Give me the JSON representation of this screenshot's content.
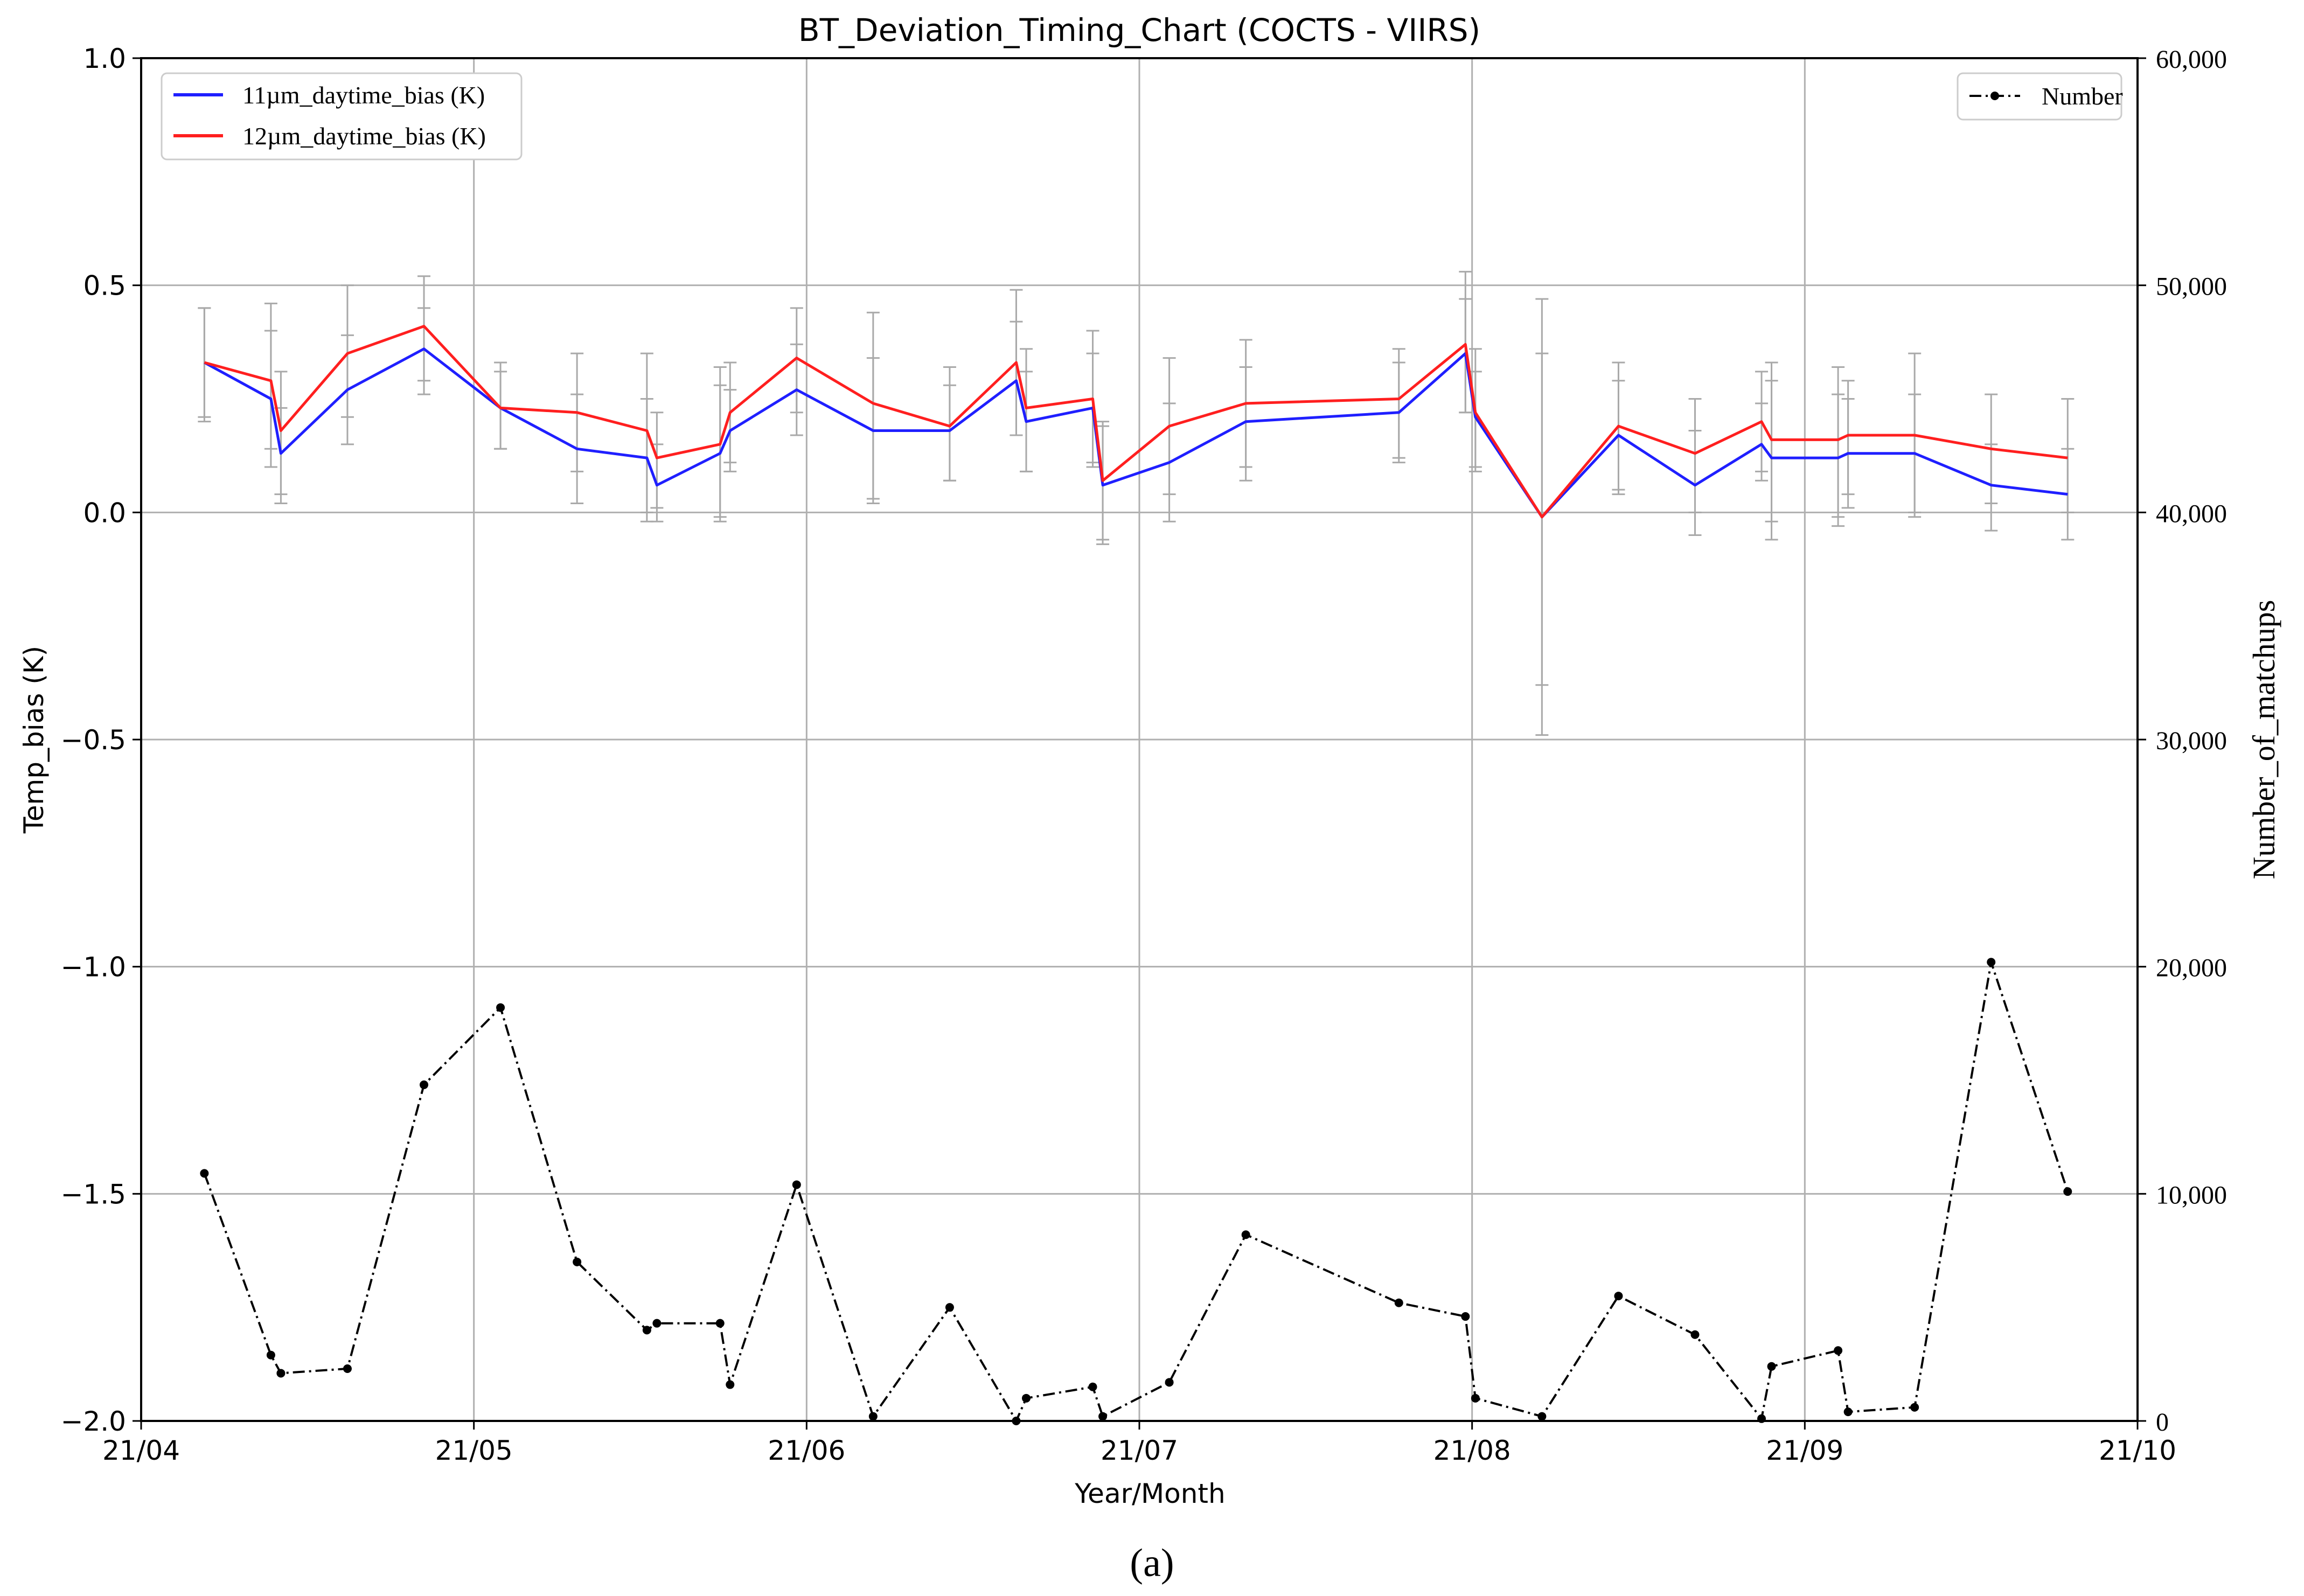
{
  "chart_data": {
    "type": "line",
    "title": "BT_Deviation_Timing_Chart (COCTS - VIIRS)",
    "xlabel": "Year/Month",
    "ylabel": "Temp_bias (K)",
    "y2label": "Number_of_matchups",
    "xlim": [
      0,
      6
    ],
    "ylim": [
      -2.0,
      1.0
    ],
    "y2lim": [
      0,
      60000
    ],
    "grid": true,
    "x_ticks": [
      {
        "pos": 0,
        "label": "21/04"
      },
      {
        "pos": 1,
        "label": "21/05"
      },
      {
        "pos": 2,
        "label": "21/06"
      },
      {
        "pos": 3,
        "label": "21/07"
      },
      {
        "pos": 4,
        "label": "21/08"
      },
      {
        "pos": 5,
        "label": "21/09"
      },
      {
        "pos": 6,
        "label": "21/10"
      }
    ],
    "y_ticks": [
      {
        "value": 1.0,
        "label": "1.0"
      },
      {
        "value": 0.5,
        "label": "0.5"
      },
      {
        "value": 0.0,
        "label": "0.0"
      },
      {
        "value": -0.5,
        "label": "−0.5"
      },
      {
        "value": -1.0,
        "label": "−1.0"
      },
      {
        "value": -1.5,
        "label": "−1.5"
      },
      {
        "value": -2.0,
        "label": "−2.0"
      }
    ],
    "y2_ticks": [
      {
        "value": 60000,
        "label": "60,000"
      },
      {
        "value": 50000,
        "label": "50,000"
      },
      {
        "value": 40000,
        "label": "40,000"
      },
      {
        "value": 30000,
        "label": "30,000"
      },
      {
        "value": 20000,
        "label": "20,000"
      },
      {
        "value": 10000,
        "label": "10,000"
      },
      {
        "value": 0,
        "label": "0"
      }
    ],
    "legend_left": {
      "placement": "top-left"
    },
    "legend_right": {
      "placement": "top-right"
    },
    "series": [
      {
        "name": "11µm_daytime_bias (K)",
        "axis": "left",
        "color": "#1f1fff",
        "points": [
          {
            "x": 0.19,
            "y": 0.33,
            "lo": 0.2,
            "hi": 0.45
          },
          {
            "x": 0.39,
            "y": 0.25,
            "lo": 0.1,
            "hi": 0.4
          },
          {
            "x": 0.42,
            "y": 0.13,
            "lo": 0.04,
            "hi": 0.23
          },
          {
            "x": 0.62,
            "y": 0.27,
            "lo": 0.15,
            "hi": 0.39
          },
          {
            "x": 0.85,
            "y": 0.36,
            "lo": 0.26,
            "hi": 0.45
          },
          {
            "x": 1.08,
            "y": 0.23,
            "lo": 0.14,
            "hi": 0.31
          },
          {
            "x": 1.31,
            "y": 0.14,
            "lo": 0.02,
            "hi": 0.26
          },
          {
            "x": 1.52,
            "y": 0.12,
            "lo": 0.0,
            "hi": 0.25
          },
          {
            "x": 1.55,
            "y": 0.06,
            "lo": -0.02,
            "hi": 0.15
          },
          {
            "x": 1.74,
            "y": 0.13,
            "lo": -0.02,
            "hi": 0.28
          },
          {
            "x": 1.77,
            "y": 0.18,
            "lo": 0.09,
            "hi": 0.27
          },
          {
            "x": 1.97,
            "y": 0.27,
            "lo": 0.17,
            "hi": 0.37
          },
          {
            "x": 2.2,
            "y": 0.18,
            "lo": 0.02,
            "hi": 0.34
          },
          {
            "x": 2.43,
            "y": 0.18,
            "lo": 0.07,
            "hi": 0.28
          },
          {
            "x": 2.63,
            "y": 0.29,
            "lo": 0.17,
            "hi": 0.42
          },
          {
            "x": 2.66,
            "y": 0.2,
            "lo": 0.09,
            "hi": 0.31
          },
          {
            "x": 2.86,
            "y": 0.23,
            "lo": 0.1,
            "hi": 0.35
          },
          {
            "x": 2.89,
            "y": 0.06,
            "lo": -0.07,
            "hi": 0.19
          },
          {
            "x": 3.09,
            "y": 0.11,
            "lo": -0.02,
            "hi": 0.24
          },
          {
            "x": 3.32,
            "y": 0.2,
            "lo": 0.1,
            "hi": 0.32
          },
          {
            "x": 3.78,
            "y": 0.22,
            "lo": 0.11,
            "hi": 0.33
          },
          {
            "x": 3.98,
            "y": 0.35,
            "lo": 0.22,
            "hi": 0.47
          },
          {
            "x": 4.01,
            "y": 0.21,
            "lo": 0.09,
            "hi": 0.31
          },
          {
            "x": 4.21,
            "y": -0.01,
            "lo": -0.49,
            "hi": 0.35
          },
          {
            "x": 4.44,
            "y": 0.17,
            "lo": 0.04,
            "hi": 0.29
          },
          {
            "x": 4.67,
            "y": 0.06,
            "lo": -0.05,
            "hi": 0.18
          },
          {
            "x": 4.87,
            "y": 0.15,
            "lo": 0.07,
            "hi": 0.24
          },
          {
            "x": 4.9,
            "y": 0.12,
            "lo": -0.06,
            "hi": 0.29
          },
          {
            "x": 5.1,
            "y": 0.12,
            "lo": -0.03,
            "hi": 0.26
          },
          {
            "x": 5.13,
            "y": 0.13,
            "lo": 0.01,
            "hi": 0.25
          },
          {
            "x": 5.33,
            "y": 0.13,
            "lo": -0.01,
            "hi": 0.26
          },
          {
            "x": 5.56,
            "y": 0.06,
            "lo": -0.04,
            "hi": 0.15
          },
          {
            "x": 5.79,
            "y": 0.04,
            "lo": -0.06,
            "hi": 0.14
          }
        ]
      },
      {
        "name": "12µm_daytime_bias (K)",
        "axis": "left",
        "color": "#ff1f1f",
        "points": [
          {
            "x": 0.19,
            "y": 0.33,
            "lo": 0.21,
            "hi": 0.45
          },
          {
            "x": 0.39,
            "y": 0.29,
            "lo": 0.14,
            "hi": 0.46
          },
          {
            "x": 0.42,
            "y": 0.18,
            "lo": 0.02,
            "hi": 0.31
          },
          {
            "x": 0.62,
            "y": 0.35,
            "lo": 0.21,
            "hi": 0.5
          },
          {
            "x": 0.85,
            "y": 0.41,
            "lo": 0.29,
            "hi": 0.52
          },
          {
            "x": 1.08,
            "y": 0.23,
            "lo": 0.14,
            "hi": 0.33
          },
          {
            "x": 1.31,
            "y": 0.22,
            "lo": 0.09,
            "hi": 0.35
          },
          {
            "x": 1.52,
            "y": 0.18,
            "lo": -0.02,
            "hi": 0.35
          },
          {
            "x": 1.55,
            "y": 0.12,
            "lo": 0.01,
            "hi": 0.22
          },
          {
            "x": 1.74,
            "y": 0.15,
            "lo": -0.01,
            "hi": 0.32
          },
          {
            "x": 1.77,
            "y": 0.22,
            "lo": 0.11,
            "hi": 0.33
          },
          {
            "x": 1.97,
            "y": 0.34,
            "lo": 0.22,
            "hi": 0.45
          },
          {
            "x": 2.2,
            "y": 0.24,
            "lo": 0.03,
            "hi": 0.44
          },
          {
            "x": 2.43,
            "y": 0.19,
            "lo": 0.07,
            "hi": 0.32
          },
          {
            "x": 2.63,
            "y": 0.33,
            "lo": 0.17,
            "hi": 0.49
          },
          {
            "x": 2.66,
            "y": 0.23,
            "lo": 0.09,
            "hi": 0.36
          },
          {
            "x": 2.86,
            "y": 0.25,
            "lo": 0.11,
            "hi": 0.4
          },
          {
            "x": 2.89,
            "y": 0.07,
            "lo": -0.06,
            "hi": 0.2
          },
          {
            "x": 3.09,
            "y": 0.19,
            "lo": 0.04,
            "hi": 0.34
          },
          {
            "x": 3.32,
            "y": 0.24,
            "lo": 0.07,
            "hi": 0.38
          },
          {
            "x": 3.78,
            "y": 0.25,
            "lo": 0.12,
            "hi": 0.36
          },
          {
            "x": 3.98,
            "y": 0.37,
            "lo": 0.22,
            "hi": 0.53
          },
          {
            "x": 4.01,
            "y": 0.22,
            "lo": 0.1,
            "hi": 0.36
          },
          {
            "x": 4.21,
            "y": -0.01,
            "lo": -0.38,
            "hi": 0.47
          },
          {
            "x": 4.44,
            "y": 0.19,
            "lo": 0.05,
            "hi": 0.33
          },
          {
            "x": 4.67,
            "y": 0.13,
            "lo": 0.0,
            "hi": 0.25
          },
          {
            "x": 4.87,
            "y": 0.2,
            "lo": 0.09,
            "hi": 0.31
          },
          {
            "x": 4.9,
            "y": 0.16,
            "lo": -0.02,
            "hi": 0.33
          },
          {
            "x": 5.1,
            "y": 0.16,
            "lo": -0.01,
            "hi": 0.32
          },
          {
            "x": 5.13,
            "y": 0.17,
            "lo": 0.04,
            "hi": 0.29
          },
          {
            "x": 5.33,
            "y": 0.17,
            "lo": 0.0,
            "hi": 0.35
          },
          {
            "x": 5.56,
            "y": 0.14,
            "lo": 0.02,
            "hi": 0.26
          },
          {
            "x": 5.79,
            "y": 0.12,
            "lo": 0.0,
            "hi": 0.25
          }
        ]
      },
      {
        "name": "Number",
        "axis": "right",
        "color": "#000000",
        "style": "dash-dot with dot markers",
        "points": [
          {
            "x": 0.19,
            "y": 10900
          },
          {
            "x": 0.39,
            "y": 2900
          },
          {
            "x": 0.42,
            "y": 2100
          },
          {
            "x": 0.62,
            "y": 2300
          },
          {
            "x": 0.85,
            "y": 14800
          },
          {
            "x": 1.08,
            "y": 18200
          },
          {
            "x": 1.31,
            "y": 7000
          },
          {
            "x": 1.52,
            "y": 4000
          },
          {
            "x": 1.55,
            "y": 4300
          },
          {
            "x": 1.74,
            "y": 4300
          },
          {
            "x": 1.77,
            "y": 1600
          },
          {
            "x": 1.97,
            "y": 10400
          },
          {
            "x": 2.2,
            "y": 200
          },
          {
            "x": 2.43,
            "y": 5000
          },
          {
            "x": 2.63,
            "y": 0
          },
          {
            "x": 2.66,
            "y": 1000
          },
          {
            "x": 2.86,
            "y": 1500
          },
          {
            "x": 2.89,
            "y": 200
          },
          {
            "x": 3.09,
            "y": 1700
          },
          {
            "x": 3.32,
            "y": 8200
          },
          {
            "x": 3.78,
            "y": 5200
          },
          {
            "x": 3.98,
            "y": 4600
          },
          {
            "x": 4.01,
            "y": 1000
          },
          {
            "x": 4.21,
            "y": 200
          },
          {
            "x": 4.44,
            "y": 5500
          },
          {
            "x": 4.67,
            "y": 3800
          },
          {
            "x": 4.87,
            "y": 100
          },
          {
            "x": 4.9,
            "y": 2400
          },
          {
            "x": 5.1,
            "y": 3100
          },
          {
            "x": 5.13,
            "y": 400
          },
          {
            "x": 5.33,
            "y": 600
          },
          {
            "x": 5.56,
            "y": 20200
          },
          {
            "x": 5.79,
            "y": 10100
          }
        ]
      }
    ]
  },
  "caption": "(a)"
}
